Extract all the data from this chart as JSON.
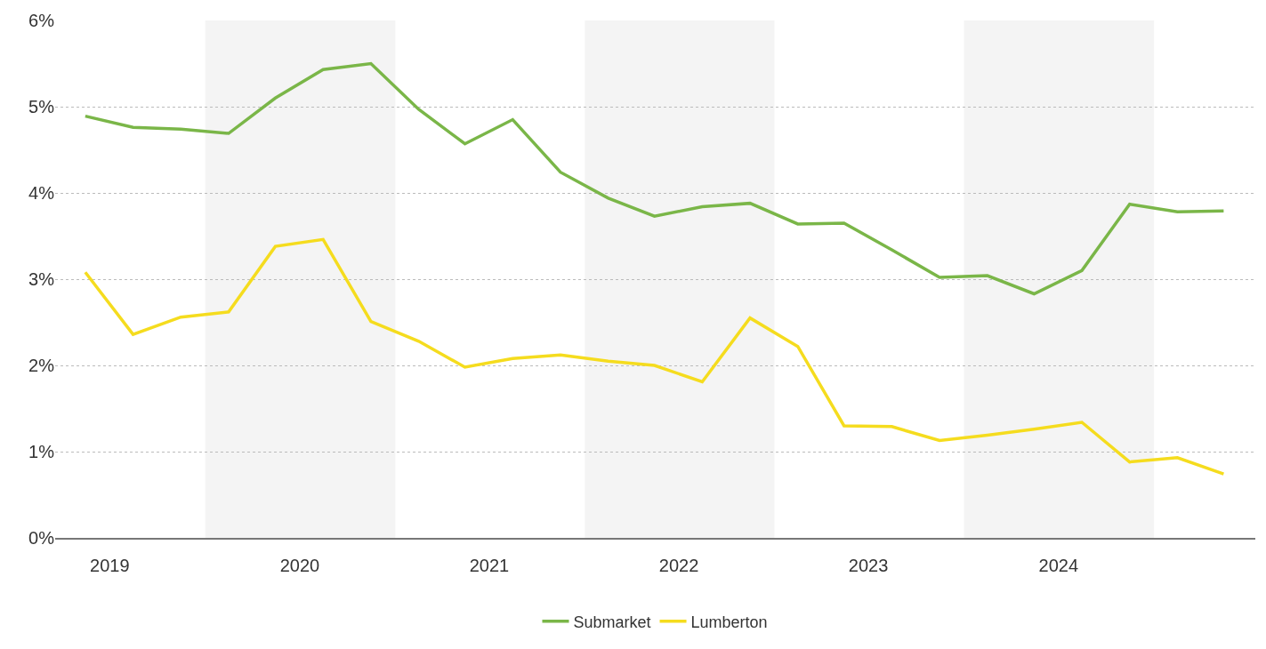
{
  "chart_data": {
    "type": "line",
    "x": [
      "2019-05-15",
      "2019-08-15",
      "2019-11-15",
      "2020-02-15",
      "2020-05-15",
      "2020-08-15",
      "2020-11-15",
      "2021-02-15",
      "2021-05-15",
      "2021-08-15",
      "2021-11-15",
      "2022-02-15",
      "2022-05-15",
      "2022-08-15",
      "2022-11-15",
      "2023-02-15",
      "2023-05-15",
      "2023-08-15",
      "2023-11-15",
      "2024-02-15",
      "2024-05-15",
      "2024-08-15",
      "2024-11-15",
      "2025-02-15",
      "2025-05-15"
    ],
    "series": [
      {
        "name": "Submarket",
        "color": "#7ab648",
        "values": [
          4.89,
          4.76,
          4.74,
          4.69,
          5.1,
          5.43,
          5.5,
          4.97,
          4.57,
          4.85,
          4.24,
          3.94,
          3.73,
          3.84,
          3.88,
          3.64,
          3.65,
          3.34,
          3.02,
          3.04,
          2.83,
          3.1,
          3.87,
          3.78,
          3.79
        ]
      },
      {
        "name": "Lumberton",
        "color": "#f5dc1e",
        "values": [
          3.08,
          2.36,
          2.56,
          2.62,
          3.38,
          3.46,
          2.51,
          2.28,
          1.98,
          2.08,
          2.12,
          2.05,
          2.0,
          1.81,
          2.55,
          2.22,
          1.3,
          1.29,
          1.13,
          1.19,
          1.26,
          1.34,
          0.88,
          0.93,
          0.74
        ]
      }
    ],
    "xlim": [
      "2019-03-18",
      "2025-07-15"
    ],
    "xticks": [
      {
        "value": "2019-07-01",
        "label": "2019"
      },
      {
        "value": "2020-07-01",
        "label": "2020"
      },
      {
        "value": "2021-07-01",
        "label": "2021"
      },
      {
        "value": "2022-07-01",
        "label": "2022"
      },
      {
        "value": "2023-07-01",
        "label": "2023"
      },
      {
        "value": "2024-07-01",
        "label": "2024"
      }
    ],
    "ylim": [
      0,
      6
    ],
    "yticks": [
      {
        "value": 0,
        "label": "0%"
      },
      {
        "value": 1,
        "label": "1%"
      },
      {
        "value": 2,
        "label": "2%"
      },
      {
        "value": 3,
        "label": "3%"
      },
      {
        "value": 4,
        "label": "4%"
      },
      {
        "value": 5,
        "label": "5%"
      },
      {
        "value": 6,
        "label": "6%"
      }
    ],
    "bands": [
      {
        "axis": "x",
        "from": "2020-01-01",
        "to": "2021-01-01",
        "color": "#f4f4f4"
      },
      {
        "axis": "x",
        "from": "2022-01-01",
        "to": "2023-01-01",
        "color": "#f4f4f4"
      },
      {
        "axis": "x",
        "from": "2024-01-01",
        "to": "2025-01-01",
        "color": "#f4f4f4"
      }
    ],
    "grid": "y",
    "legend": "bottom",
    "marker": "none",
    "line_style": "solid"
  }
}
